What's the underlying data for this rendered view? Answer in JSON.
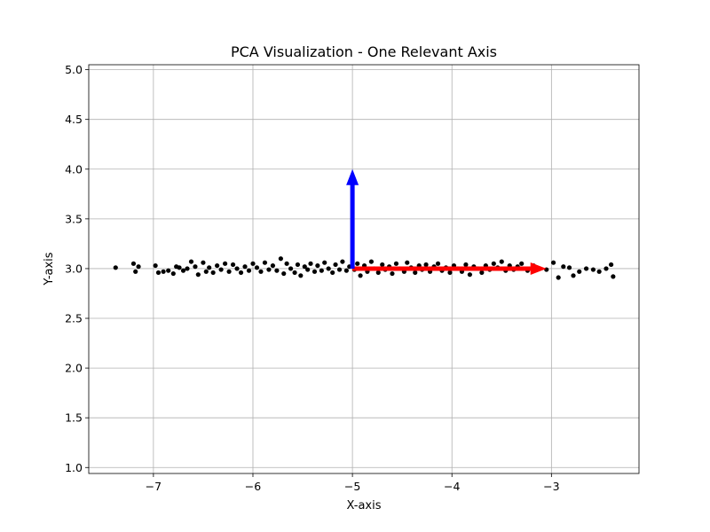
{
  "chart_data": {
    "type": "scatter",
    "title": "PCA Visualization - One Relevant Axis",
    "xlabel": "X-axis",
    "ylabel": "Y-axis",
    "color": "#000000",
    "grid": true,
    "xlim": [
      -7.65,
      -2.12
    ],
    "ylim": [
      0.94,
      5.05
    ],
    "xticks": [
      {
        "value": -7,
        "label": "−7"
      },
      {
        "value": -6,
        "label": "−6"
      },
      {
        "value": -5,
        "label": "−5"
      },
      {
        "value": -4,
        "label": "−4"
      },
      {
        "value": -3,
        "label": "−3"
      }
    ],
    "yticks": [
      {
        "value": 1,
        "label": "1.0"
      },
      {
        "value": 1.5,
        "label": "1.5"
      },
      {
        "value": 2,
        "label": "2.0"
      },
      {
        "value": 2.5,
        "label": "2.5"
      },
      {
        "value": 3,
        "label": "3.0"
      },
      {
        "value": 3.5,
        "label": "3.5"
      },
      {
        "value": 4,
        "label": "4.0"
      },
      {
        "value": 4.5,
        "label": "4.5"
      },
      {
        "value": 5,
        "label": "5.0"
      }
    ],
    "x": [
      -7.38,
      -7.2,
      -7.18,
      -7.15,
      -6.98,
      -6.95,
      -6.9,
      -6.85,
      -6.8,
      -6.77,
      -6.74,
      -6.7,
      -6.66,
      -6.62,
      -6.58,
      -6.55,
      -6.5,
      -6.47,
      -6.44,
      -6.4,
      -6.36,
      -6.32,
      -6.28,
      -6.24,
      -6.2,
      -6.16,
      -6.12,
      -6.08,
      -6.04,
      -6.0,
      -5.96,
      -5.92,
      -5.88,
      -5.84,
      -5.8,
      -5.76,
      -5.72,
      -5.69,
      -5.66,
      -5.62,
      -5.58,
      -5.55,
      -5.52,
      -5.48,
      -5.45,
      -5.42,
      -5.38,
      -5.35,
      -5.31,
      -5.28,
      -5.24,
      -5.2,
      -5.17,
      -5.13,
      -5.1,
      -5.06,
      -5.03,
      -4.98,
      -4.95,
      -4.92,
      -4.88,
      -4.85,
      -4.81,
      -4.78,
      -4.74,
      -4.7,
      -4.67,
      -4.63,
      -4.6,
      -4.56,
      -4.52,
      -4.48,
      -4.45,
      -4.41,
      -4.37,
      -4.33,
      -4.3,
      -4.26,
      -4.22,
      -4.18,
      -4.14,
      -4.1,
      -4.06,
      -4.02,
      -3.98,
      -3.94,
      -3.9,
      -3.86,
      -3.82,
      -3.78,
      -3.74,
      -3.7,
      -3.66,
      -3.62,
      -3.58,
      -3.54,
      -3.5,
      -3.46,
      -3.42,
      -3.38,
      -3.34,
      -3.3,
      -3.24,
      -3.18,
      -3.12,
      -3.05,
      -2.98,
      -2.93,
      -2.88,
      -2.82,
      -2.78,
      -2.72,
      -2.65,
      -2.58,
      -2.52,
      -2.45,
      -2.4,
      -2.38
    ],
    "values": [
      3.01,
      3.05,
      2.97,
      3.02,
      3.03,
      2.96,
      2.97,
      2.98,
      2.95,
      3.02,
      3.01,
      2.98,
      3.0,
      3.07,
      3.02,
      2.94,
      3.06,
      2.97,
      3.01,
      2.96,
      3.03,
      2.99,
      3.05,
      2.97,
      3.04,
      3.0,
      2.96,
      3.02,
      2.98,
      3.05,
      3.01,
      2.97,
      3.06,
      2.99,
      3.03,
      2.98,
      3.1,
      2.95,
      3.05,
      3.0,
      2.96,
      3.04,
      2.93,
      3.02,
      2.99,
      3.05,
      2.97,
      3.03,
      2.98,
      3.06,
      3.0,
      2.96,
      3.04,
      2.99,
      3.07,
      2.98,
      3.02,
      2.99,
      3.05,
      2.93,
      3.03,
      2.97,
      3.07,
      3.0,
      2.96,
      3.04,
      2.99,
      3.02,
      2.95,
      3.05,
      3.0,
      2.97,
      3.06,
      3.01,
      2.96,
      3.03,
      2.99,
      3.04,
      2.97,
      3.02,
      3.05,
      2.98,
      3.01,
      2.96,
      3.03,
      3.0,
      2.97,
      3.04,
      2.94,
      3.02,
      3.0,
      2.96,
      3.03,
      2.99,
      3.05,
      3.01,
      3.07,
      2.98,
      3.03,
      2.99,
      3.02,
      3.05,
      2.98,
      3.03,
      3.0,
      2.99,
      3.06,
      2.91,
      3.02,
      3.01,
      2.93,
      2.97,
      3.0,
      2.99,
      2.97,
      3.0,
      3.04,
      2.92
    ],
    "arrows": [
      {
        "x": -5,
        "y": 3,
        "dx": 1.95,
        "dy": 0,
        "color": "#ff0000"
      },
      {
        "x": -5,
        "y": 3,
        "dx": 0,
        "dy": 1,
        "color": "#0000ff"
      }
    ]
  }
}
